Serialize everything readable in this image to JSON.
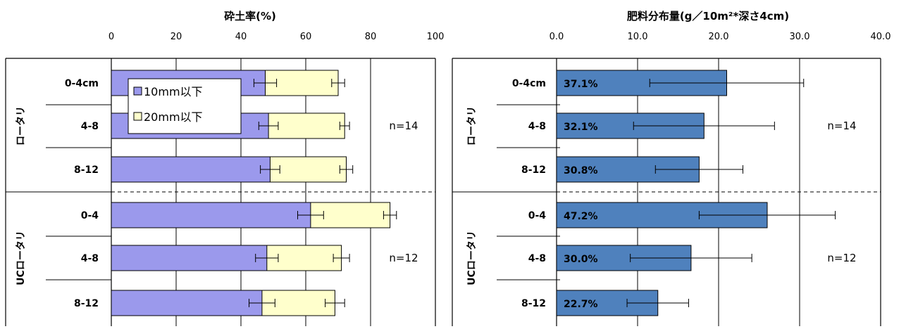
{
  "chart_data": [
    {
      "type": "bar",
      "title": "砕土率(%)",
      "xlim": [
        0,
        100
      ],
      "ticks": [
        "0",
        "20",
        "40",
        "60",
        "80",
        "100"
      ],
      "groups": [
        {
          "label": "ロータリ",
          "n": "n=14",
          "rows": [
            "0-4cm",
            "4-8",
            "8-12"
          ]
        },
        {
          "label": "UCロータリ",
          "n": "n=12",
          "rows": [
            "0-4",
            "4-8",
            "8-12"
          ]
        }
      ],
      "series": [
        {
          "name": "10mm以下",
          "color": "#9b99ec",
          "values": [
            47.5,
            48.5,
            49,
            61.5,
            48,
            46.5
          ],
          "err": [
            3.5,
            3,
            3,
            4,
            3.5,
            4
          ]
        },
        {
          "name": "20mm以下",
          "color": "#ffffcc",
          "values": [
            70,
            72,
            72.5,
            86,
            71,
            69
          ],
          "err": [
            2,
            1.5,
            2,
            2,
            2.5,
            3
          ]
        }
      ],
      "legend": "upper-left inside plot",
      "grid": true
    },
    {
      "type": "bar",
      "title": "肥料分布量(g／10m²*深さ4cm)",
      "xlim": [
        0,
        40
      ],
      "ticks": [
        "0.0",
        "10.0",
        "20.0",
        "30.0",
        "40.0"
      ],
      "groups": [
        {
          "label": "ロータリ",
          "n": "n=14",
          "rows": [
            "0-4cm",
            "4-8",
            "8-12"
          ]
        },
        {
          "label": "UCロータリ",
          "n": "n=12",
          "rows": [
            "0-4",
            "4-8",
            "8-12"
          ]
        }
      ],
      "series": [
        {
          "name": "",
          "color": "#4f81bd",
          "values": [
            21,
            18.2,
            17.6,
            26,
            16.6,
            12.5
          ],
          "err": [
            9.5,
            8.7,
            5.4,
            8.4,
            7.5,
            3.8
          ],
          "labels": [
            "37.1%",
            "32.1%",
            "30.8%",
            "47.2%",
            "30.0%",
            "22.7%"
          ]
        }
      ],
      "grid": true
    }
  ]
}
